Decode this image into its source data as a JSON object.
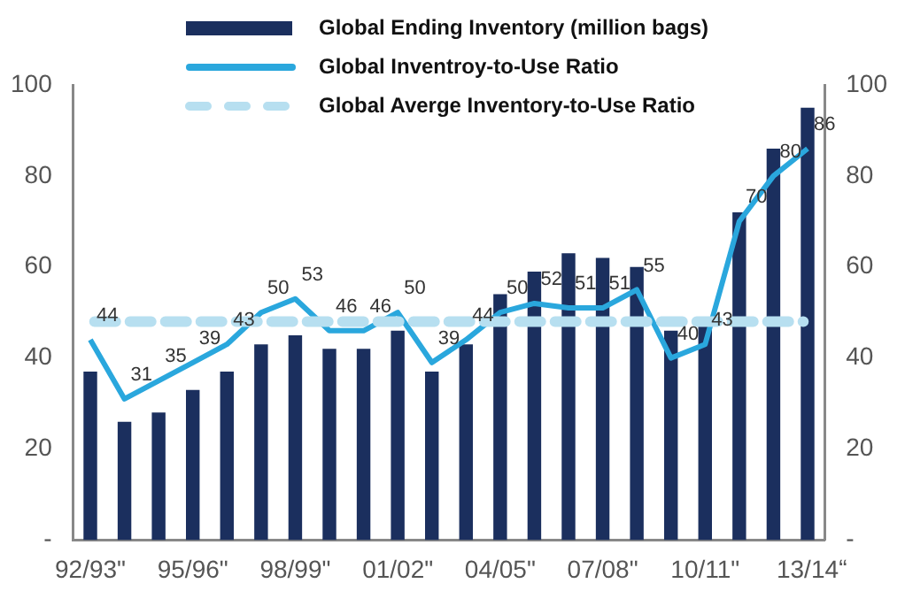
{
  "chart_data": {
    "type": "bar",
    "categories": [
      "92/93\"",
      null,
      null,
      "95/96\"",
      null,
      null,
      "98/99\"",
      null,
      null,
      "01/02\"",
      null,
      null,
      "04/05\"",
      null,
      null,
      "07/08\"",
      null,
      null,
      "10/11\"",
      null,
      null,
      "13/14"
    ],
    "series": [
      {
        "name": "Global Ending Inventory (million bags)",
        "color": "#1b2f5e",
        "values": [
          37,
          26,
          28,
          33,
          37,
          43,
          45,
          42,
          42,
          46,
          37,
          43,
          54,
          59,
          63,
          62,
          60,
          46,
          47,
          72,
          86,
          95
        ]
      },
      {
        "name": "Global Inventroy-to-Use Ratio",
        "type": "line",
        "color": "#2aa7dd",
        "values": [
          44,
          31,
          35,
          39,
          43,
          50,
          53,
          46,
          46,
          50,
          39,
          44,
          50,
          52,
          51,
          51,
          55,
          40,
          43,
          70,
          80,
          86
        ],
        "value_labels": [
          "44",
          "31",
          "35",
          "39",
          "43",
          "50",
          "53",
          "46",
          "46",
          "50",
          "39",
          "44",
          "50",
          "52",
          "51",
          "51",
          "55",
          "40",
          "43",
          "70",
          "80",
          "86"
        ]
      }
    ],
    "ref_lines": [
      {
        "axis": "y",
        "value": 48,
        "label": "Global Averge Inventory-to-Use Ratio",
        "color": "#b7dff0",
        "line_style": "dashed"
      }
    ],
    "ylim": [
      0,
      100
    ],
    "yticks": [
      {
        "value": 0,
        "label": "-"
      },
      20,
      40,
      60,
      80,
      100
    ],
    "y2lim": [
      0,
      100
    ],
    "y2ticks": [
      {
        "value": 0,
        "label": "-"
      },
      20,
      40,
      60,
      80,
      100
    ],
    "annotations": [
      "“"
    ],
    "legend": "top",
    "grid": false,
    "marker": "none"
  }
}
